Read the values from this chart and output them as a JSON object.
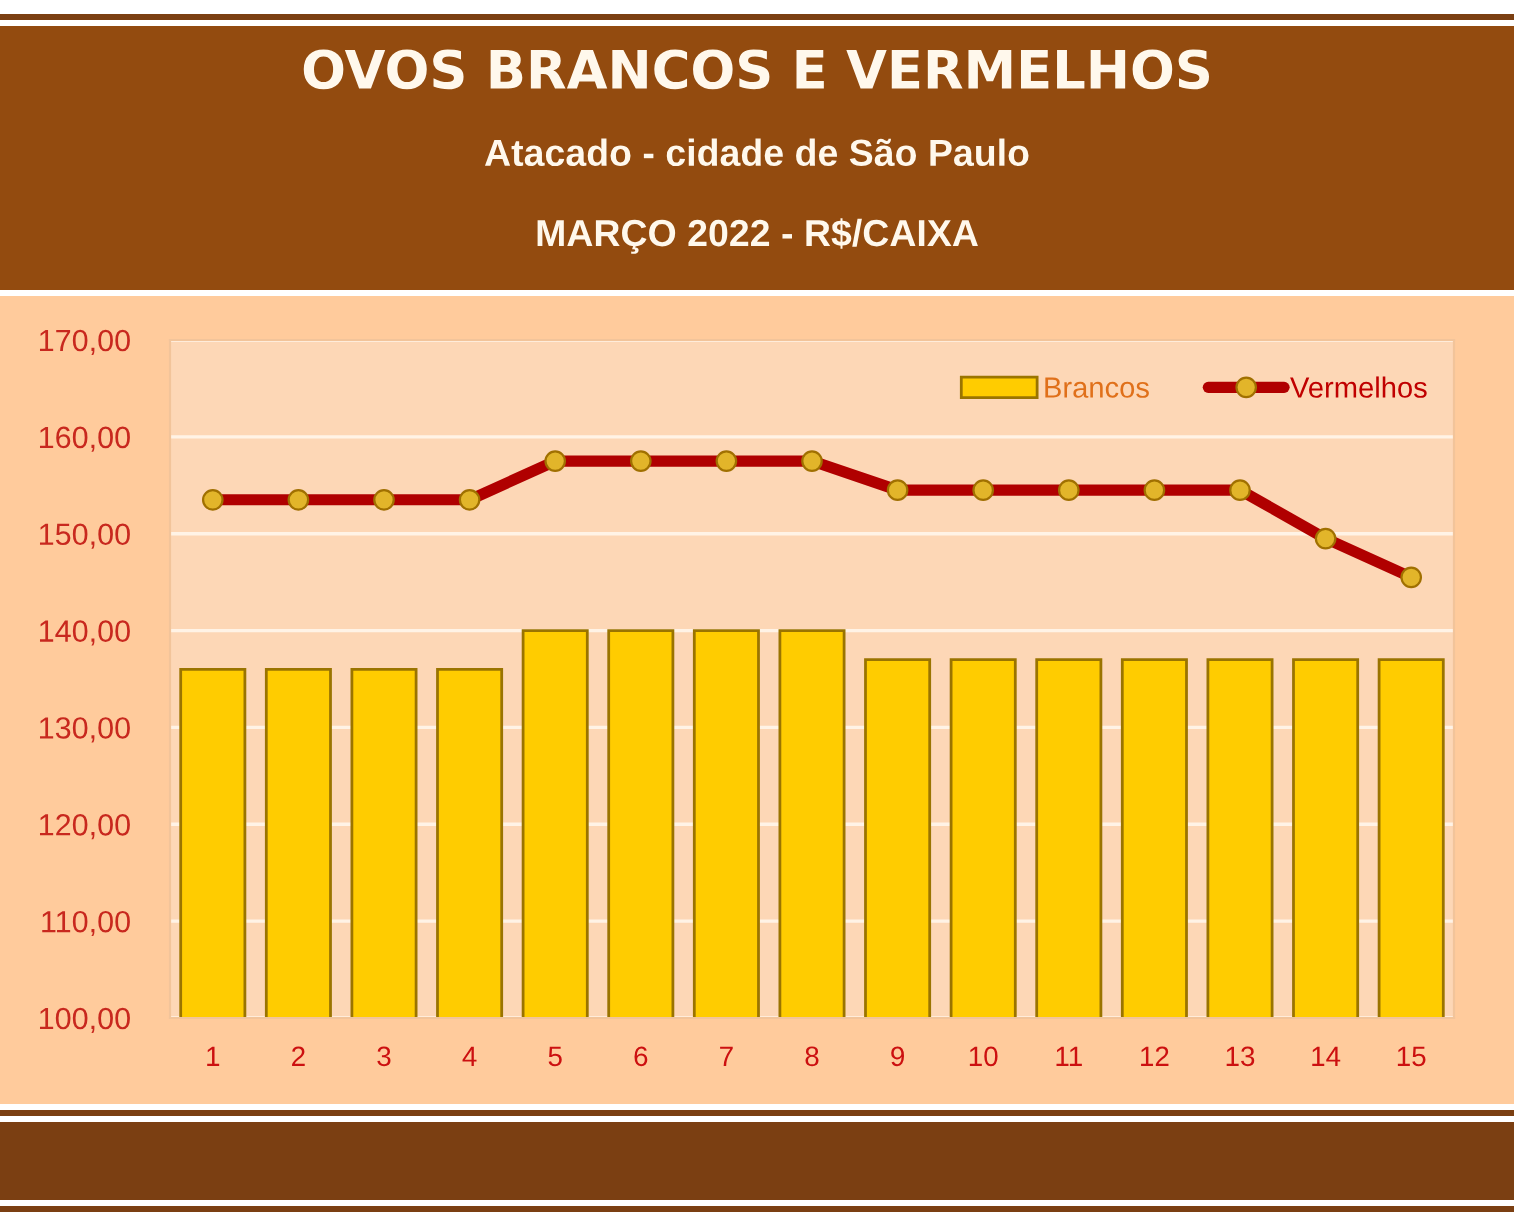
{
  "chart_data": {
    "type": "bar",
    "title": "OVOS BRANCOS E VERMELHOS",
    "subtitle": "Atacado - cidade de São Paulo\nMARÇO 2022 - R$/CAIXA",
    "categories": [
      "1",
      "2",
      "3",
      "4",
      "5",
      "6",
      "7",
      "8",
      "9",
      "10",
      "11",
      "12",
      "13",
      "14",
      "15"
    ],
    "series": [
      {
        "name": "Brancos",
        "color": "#ffcc00",
        "values": [
          136,
          136,
          136,
          136,
          140,
          140,
          140,
          140,
          137,
          137,
          137,
          137,
          137,
          137,
          137
        ]
      },
      {
        "name": "Vermelhos",
        "type": "line",
        "color": "#b00000",
        "values": [
          153.5,
          153.5,
          153.5,
          153.5,
          157.5,
          157.5,
          157.5,
          157.5,
          154.5,
          154.5,
          154.5,
          154.5,
          154.5,
          149.5,
          145.5
        ]
      }
    ],
    "ylim": [
      100,
      170
    ],
    "yticks": [
      {
        "value": 100,
        "label": "100,00"
      },
      {
        "value": 110,
        "label": "110,00"
      },
      {
        "value": 120,
        "label": "120,00"
      },
      {
        "value": 130,
        "label": "130,00"
      },
      {
        "value": 140,
        "label": "140,00"
      },
      {
        "value": 150,
        "label": "150,00"
      },
      {
        "value": 160,
        "label": "160,00"
      },
      {
        "value": 170,
        "label": "170,00"
      }
    ],
    "grid": "y",
    "legend": "top right",
    "marker": "circle",
    "line_style": "solid"
  }
}
